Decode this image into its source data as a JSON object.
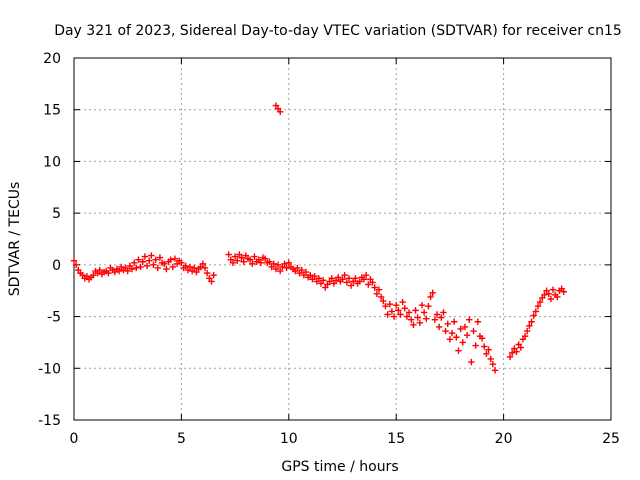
{
  "chart_data": {
    "type": "scatter",
    "title": "Day 321 of 2023, Sidereal Day-to-day VTEC variation (SDTVAR) for receiver cn15",
    "xlabel": "GPS time / hours",
    "ylabel": "SDTVAR / TECUs",
    "xlim": [
      0,
      25
    ],
    "ylim": [
      -15,
      20
    ],
    "x_ticks": [
      0,
      5,
      10,
      15,
      20,
      25
    ],
    "x_tick_labels": [
      "0",
      "5",
      "10",
      "15",
      "20",
      "25"
    ],
    "y_ticks": [
      -15,
      -10,
      -5,
      0,
      5,
      10,
      15,
      20
    ],
    "y_tick_labels": [
      "-15",
      "-10",
      "-5",
      "0",
      "5",
      "10",
      "15",
      "20"
    ],
    "grid": true,
    "marker": "+",
    "series": [
      {
        "name": "SDTVAR cn15",
        "color": "#ff0000",
        "x": [
          0.0,
          0.1,
          0.2,
          0.3,
          0.4,
          0.5,
          0.6,
          0.7,
          0.8,
          0.9,
          1.0,
          1.1,
          1.2,
          1.3,
          1.4,
          1.5,
          1.6,
          1.7,
          1.8,
          1.9,
          2.0,
          2.1,
          2.2,
          2.3,
          2.4,
          2.5,
          2.6,
          2.7,
          2.8,
          2.9,
          3.0,
          3.1,
          3.2,
          3.3,
          3.4,
          3.5,
          3.6,
          3.7,
          3.8,
          3.9,
          4.0,
          4.1,
          4.2,
          4.3,
          4.4,
          4.5,
          4.6,
          4.7,
          4.8,
          4.9,
          5.0,
          5.1,
          5.2,
          5.3,
          5.4,
          5.5,
          5.6,
          5.7,
          5.8,
          5.9,
          6.0,
          6.1,
          6.2,
          6.3,
          6.4,
          6.5,
          7.2,
          7.3,
          7.4,
          7.5,
          7.6,
          7.7,
          7.8,
          7.9,
          8.0,
          8.1,
          8.2,
          8.3,
          8.4,
          8.5,
          8.6,
          8.7,
          8.8,
          8.9,
          9.0,
          9.1,
          9.2,
          9.3,
          9.4,
          9.5,
          9.6,
          9.7,
          9.8,
          9.9,
          10.0,
          10.1,
          10.2,
          10.3,
          10.4,
          10.5,
          10.6,
          10.7,
          10.8,
          10.9,
          11.0,
          11.1,
          11.2,
          11.3,
          11.4,
          11.5,
          11.6,
          11.7,
          11.8,
          11.9,
          12.0,
          12.1,
          12.2,
          12.3,
          12.4,
          12.5,
          12.6,
          12.7,
          12.8,
          12.9,
          13.0,
          13.1,
          13.2,
          13.3,
          13.4,
          13.5,
          13.6,
          13.7,
          13.8,
          13.9,
          14.0,
          14.1,
          14.2,
          14.3,
          14.4,
          14.5,
          14.6,
          14.7,
          14.8,
          14.9,
          15.0,
          15.1,
          15.2,
          15.3,
          15.4,
          15.5,
          15.6,
          15.7,
          15.8,
          15.9,
          16.0,
          16.1,
          16.2,
          16.3,
          16.4,
          16.5,
          16.6,
          16.7,
          16.8,
          16.9,
          17.0,
          17.1,
          17.2,
          17.3,
          17.4,
          17.5,
          17.6,
          17.7,
          17.8,
          17.9,
          18.0,
          18.1,
          18.2,
          18.3,
          18.4,
          18.5,
          18.6,
          18.7,
          18.8,
          18.9,
          19.0,
          19.1,
          19.2,
          19.3,
          19.4,
          19.5,
          19.6,
          20.3,
          20.4,
          20.5,
          20.6,
          20.7,
          20.8,
          20.9,
          21.0,
          21.1,
          21.2,
          21.3,
          21.4,
          21.5,
          21.6,
          21.7,
          21.8,
          21.9,
          22.0,
          22.1,
          22.2,
          22.3,
          22.4,
          22.5,
          22.6,
          22.7,
          22.8,
          9.4,
          9.5,
          9.6
        ],
        "y": [
          0.4,
          0.0,
          -0.5,
          -0.8,
          -1.0,
          -1.3,
          -1.1,
          -1.4,
          -1.2,
          -1.0,
          -0.6,
          -0.8,
          -0.5,
          -0.9,
          -0.7,
          -0.6,
          -0.8,
          -0.3,
          -0.5,
          -0.7,
          -0.4,
          -0.6,
          -0.2,
          -0.5,
          -0.3,
          -0.6,
          -0.1,
          -0.4,
          0.2,
          -0.3,
          0.5,
          -0.2,
          0.3,
          0.8,
          -0.1,
          0.4,
          0.9,
          0.0,
          0.5,
          -0.3,
          0.7,
          0.2,
          0.1,
          -0.4,
          0.3,
          0.5,
          -0.2,
          0.6,
          0.1,
          0.4,
          0.2,
          -0.3,
          -0.1,
          -0.5,
          -0.2,
          -0.6,
          -0.3,
          -0.7,
          -0.4,
          -0.2,
          0.1,
          -0.3,
          -0.8,
          -1.3,
          -1.6,
          -1.0,
          1.0,
          0.5,
          0.2,
          0.8,
          0.4,
          1.0,
          0.7,
          0.3,
          0.9,
          0.6,
          0.5,
          0.1,
          0.8,
          0.3,
          0.5,
          0.2,
          0.7,
          0.6,
          0.2,
          0.3,
          -0.2,
          0.1,
          -0.4,
          0.0,
          -0.6,
          -0.2,
          0.1,
          -0.3,
          0.2,
          -0.2,
          -0.4,
          -0.6,
          -0.3,
          -0.8,
          -0.5,
          -1.0,
          -0.7,
          -1.2,
          -1.0,
          -1.4,
          -1.1,
          -1.6,
          -1.3,
          -1.8,
          -1.5,
          -2.2,
          -1.9,
          -1.6,
          -1.3,
          -1.8,
          -1.5,
          -1.2,
          -1.6,
          -1.4,
          -1.0,
          -1.7,
          -1.3,
          -2.0,
          -1.6,
          -1.3,
          -1.8,
          -1.6,
          -1.2,
          -1.4,
          -1.0,
          -1.9,
          -1.4,
          -1.7,
          -2.2,
          -2.8,
          -2.4,
          -3.1,
          -3.5,
          -4.0,
          -4.8,
          -3.8,
          -4.5,
          -5.0,
          -3.9,
          -4.4,
          -4.8,
          -3.6,
          -4.2,
          -5.0,
          -4.6,
          -5.3,
          -5.8,
          -4.4,
          -5.1,
          -5.6,
          -3.9,
          -4.6,
          -5.2,
          -4.0,
          -3.1,
          -2.7,
          -5.3,
          -4.8,
          -6.0,
          -5.1,
          -4.6,
          -6.4,
          -5.7,
          -7.2,
          -6.6,
          -5.5,
          -7.0,
          -8.3,
          -6.2,
          -7.5,
          -6.0,
          -6.8,
          -5.3,
          -9.4,
          -6.4,
          -7.8,
          -5.5,
          -6.9,
          -7.1,
          -7.9,
          -8.6,
          -8.2,
          -9.1,
          -9.6,
          -10.2,
          -8.9,
          -8.5,
          -8.1,
          -8.4,
          -7.7,
          -8.0,
          -7.2,
          -6.9,
          -6.4,
          -5.9,
          -5.5,
          -4.9,
          -4.5,
          -4.0,
          -3.6,
          -3.2,
          -2.9,
          -2.5,
          -2.8,
          -3.3,
          -2.4,
          -2.9,
          -3.1,
          -2.5,
          -2.3,
          -2.6,
          15.4,
          15.1,
          14.8
        ]
      }
    ]
  }
}
